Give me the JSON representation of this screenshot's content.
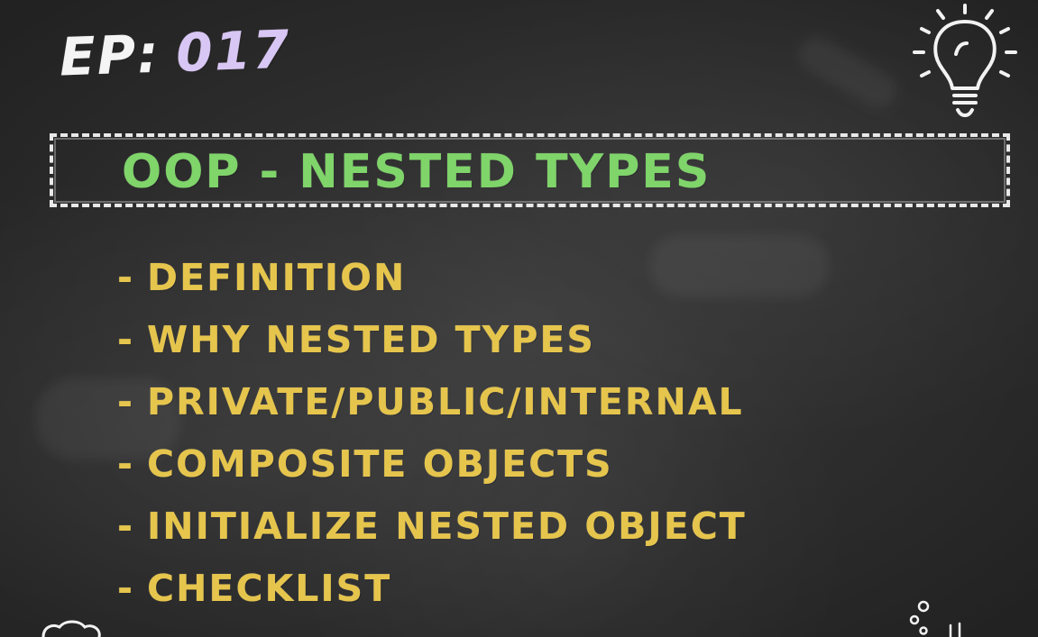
{
  "episode": {
    "prefix": "EP:",
    "number": "017"
  },
  "title": "OOP - NESTED TYPES",
  "topics": [
    "DEFINITION",
    "WHY NESTED TYPES",
    "PRIVATE/PUBLIC/INTERNAL",
    "COMPOSITE OBJECTS",
    "INITIALIZE NESTED OBJECT",
    "CHECKLIST"
  ],
  "list_marker": "-",
  "icons": {
    "top_right": "lightbulb-icon",
    "bottom_right": "bubbles-doodle-icon",
    "bottom_left": "cloud-doodle-icon"
  },
  "colors": {
    "background": "#2b2b2b",
    "episode_prefix": "#f4f4f4",
    "episode_number": "#d8c6f4",
    "title": "#7fd46a",
    "topics": "#e6c54d",
    "chalk_white": "#e9e9e9"
  }
}
